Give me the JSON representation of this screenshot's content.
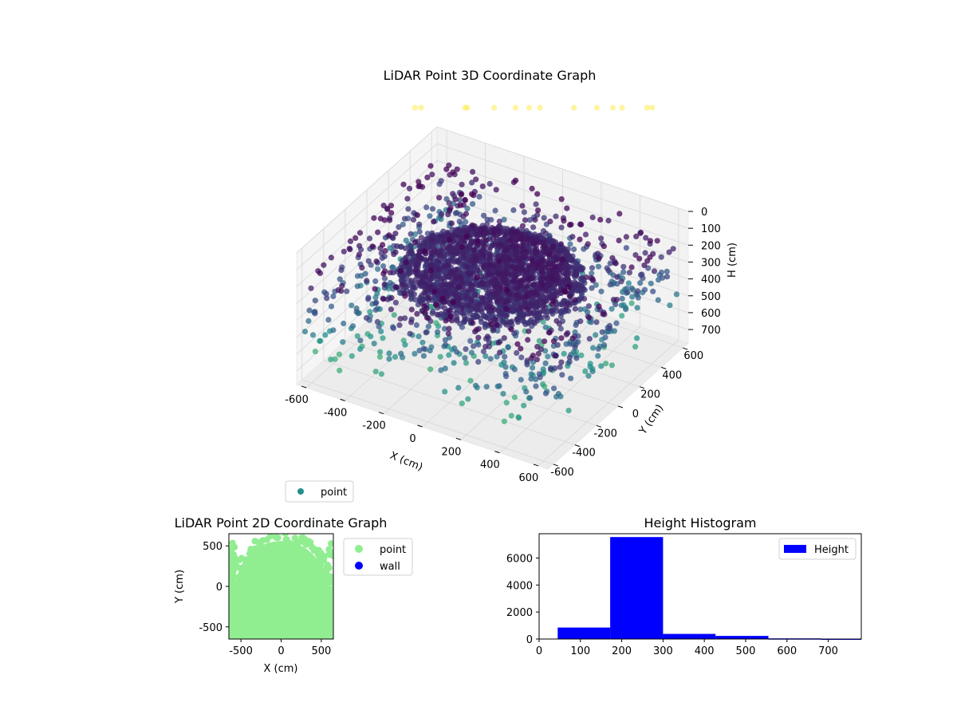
{
  "colors": {
    "histogram_bar": "#0000ff",
    "point_2d": "#90ee90",
    "wall_2d": "#0000ff",
    "legend_3d_marker": "#21918c",
    "pane": "#f2f2f2",
    "viridis_low": "#440154",
    "viridis_mid": "#31688e",
    "viridis_teal": "#21918c",
    "viridis_high": "#fde725"
  },
  "chart_data": [
    {
      "type": "scatter",
      "title": "LiDAR Point 3D Coordinate Graph",
      "xlabel": "X (cm)",
      "ylabel": "Y (cm)",
      "zlabel": "H (cm)",
      "xlim": [
        -650,
        650
      ],
      "ylim": [
        -650,
        650
      ],
      "zlim": [
        0,
        780
      ],
      "z_inverted": true,
      "xticks": [
        "-600",
        "-400",
        "-200",
        "0",
        "200",
        "400",
        "600"
      ],
      "yticks": [
        "-600",
        "-400",
        "-200",
        "0",
        "200",
        "400",
        "600"
      ],
      "zticks": [
        "0",
        "100",
        "200",
        "300",
        "400",
        "500",
        "600",
        "700"
      ],
      "colormap": "viridis",
      "legend": {
        "entries": [
          "point"
        ],
        "placement": "lower-left"
      },
      "series": [
        {
          "name": "point",
          "points": "dense disk of points at heights near 200–300 cm within radius ~320 cm, rings near radius 330–400 cm, scattered points across the box at 100–500 cm, sparse points near 750 cm"
        }
      ]
    },
    {
      "type": "scatter",
      "title": "LiDAR Point 2D Coordinate Graph",
      "xlabel": "X (cm)",
      "ylabel": "Y (cm)",
      "xlim": [
        -650,
        650
      ],
      "ylim": [
        -650,
        650
      ],
      "xticks": [
        "-500",
        "0",
        "500"
      ],
      "yticks": [
        "-500",
        "0",
        "500"
      ],
      "legend": {
        "entries": [
          "point",
          "wall"
        ],
        "placement": "upper-right outside"
      },
      "series": [
        {
          "name": "point",
          "region": "filled area covering y<0 fully and a semicircle of radius ~560 cm for y>0, with a ragged edge of dots above it"
        },
        {
          "name": "wall",
          "values": []
        }
      ]
    },
    {
      "type": "bar",
      "title": "Height Histogram",
      "xlim": [
        0,
        780
      ],
      "ylim": [
        0,
        7800
      ],
      "xticks": [
        "0",
        "100",
        "200",
        "300",
        "400",
        "500",
        "600",
        "700"
      ],
      "yticks": [
        "0",
        "2000",
        "4000",
        "6000"
      ],
      "legend": {
        "entries": [
          "Height"
        ],
        "placement": "upper-right"
      },
      "bins": [
        {
          "from": 45,
          "to": 172,
          "count": 850
        },
        {
          "from": 172,
          "to": 300,
          "count": 7550
        },
        {
          "from": 300,
          "to": 427,
          "count": 380
        },
        {
          "from": 427,
          "to": 555,
          "count": 230
        },
        {
          "from": 555,
          "to": 682,
          "count": 50
        },
        {
          "from": 682,
          "to": 810,
          "count": 30
        }
      ]
    }
  ]
}
